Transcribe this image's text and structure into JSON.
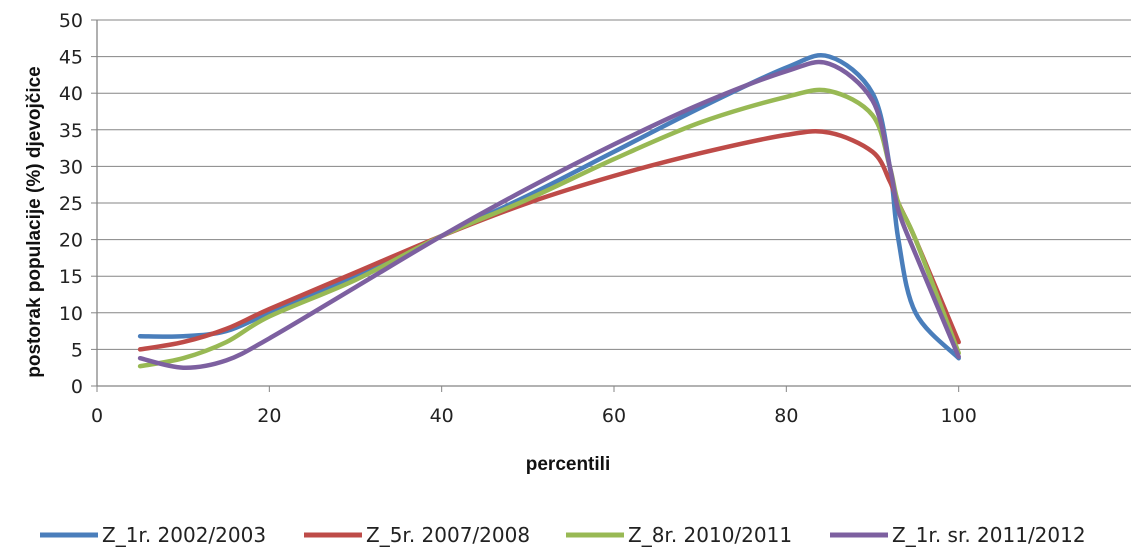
{
  "chart_data": {
    "type": "line",
    "title": "",
    "xlabel": "percentili",
    "ylabel": "postorak populacije  (%) djevojčice",
    "xlim": [
      0,
      120
    ],
    "ylim": [
      0,
      50
    ],
    "x_ticks": [
      0,
      20,
      40,
      60,
      80,
      100
    ],
    "y_ticks": [
      0,
      5,
      10,
      15,
      20,
      25,
      30,
      35,
      40,
      45,
      50
    ],
    "grid": "horizontal",
    "legend": "bottom",
    "series": [
      {
        "name": "Z_1r. 2002/2003",
        "color": "#4a7ebb",
        "points": [
          [
            5,
            6.8
          ],
          [
            10,
            6.8
          ],
          [
            15,
            7.5
          ],
          [
            20,
            10
          ],
          [
            30,
            15
          ],
          [
            40,
            20.5
          ],
          [
            50,
            26
          ],
          [
            60,
            32
          ],
          [
            70,
            38
          ],
          [
            80,
            43.5
          ],
          [
            85,
            45
          ],
          [
            90,
            40
          ],
          [
            92,
            30
          ],
          [
            93,
            20
          ],
          [
            95,
            10
          ],
          [
            100,
            3.8
          ]
        ]
      },
      {
        "name": "Z_5r. 2007/2008",
        "color": "#be4b48",
        "points": [
          [
            5,
            5
          ],
          [
            10,
            6
          ],
          [
            15,
            7.8
          ],
          [
            20,
            10.5
          ],
          [
            30,
            15.5
          ],
          [
            40,
            20.5
          ],
          [
            50,
            25
          ],
          [
            60,
            28.7
          ],
          [
            70,
            31.8
          ],
          [
            80,
            34.3
          ],
          [
            85,
            34.6
          ],
          [
            90,
            32
          ],
          [
            92,
            28
          ],
          [
            93,
            25
          ],
          [
            95,
            20
          ],
          [
            100,
            6
          ]
        ]
      },
      {
        "name": "Z_8r. 2010/2011",
        "color": "#98b954",
        "points": [
          [
            5,
            2.7
          ],
          [
            10,
            3.8
          ],
          [
            15,
            6
          ],
          [
            20,
            9.5
          ],
          [
            30,
            14.5
          ],
          [
            40,
            20.5
          ],
          [
            50,
            25.5
          ],
          [
            60,
            31
          ],
          [
            70,
            36
          ],
          [
            80,
            39.5
          ],
          [
            85,
            40.3
          ],
          [
            90,
            37
          ],
          [
            92,
            30
          ],
          [
            93,
            25
          ],
          [
            95,
            20
          ],
          [
            100,
            4.5
          ]
        ]
      },
      {
        "name": "Z_1r. sr. 2011/2012",
        "color": "#7d60a0",
        "points": [
          [
            5,
            3.8
          ],
          [
            10,
            2.5
          ],
          [
            15,
            3.5
          ],
          [
            20,
            6.5
          ],
          [
            30,
            13.5
          ],
          [
            40,
            20.5
          ],
          [
            50,
            27
          ],
          [
            60,
            33
          ],
          [
            70,
            38.5
          ],
          [
            80,
            43
          ],
          [
            85,
            44
          ],
          [
            90,
            39
          ],
          [
            92,
            30
          ],
          [
            93,
            24
          ],
          [
            95,
            18
          ],
          [
            100,
            4
          ]
        ]
      }
    ]
  }
}
